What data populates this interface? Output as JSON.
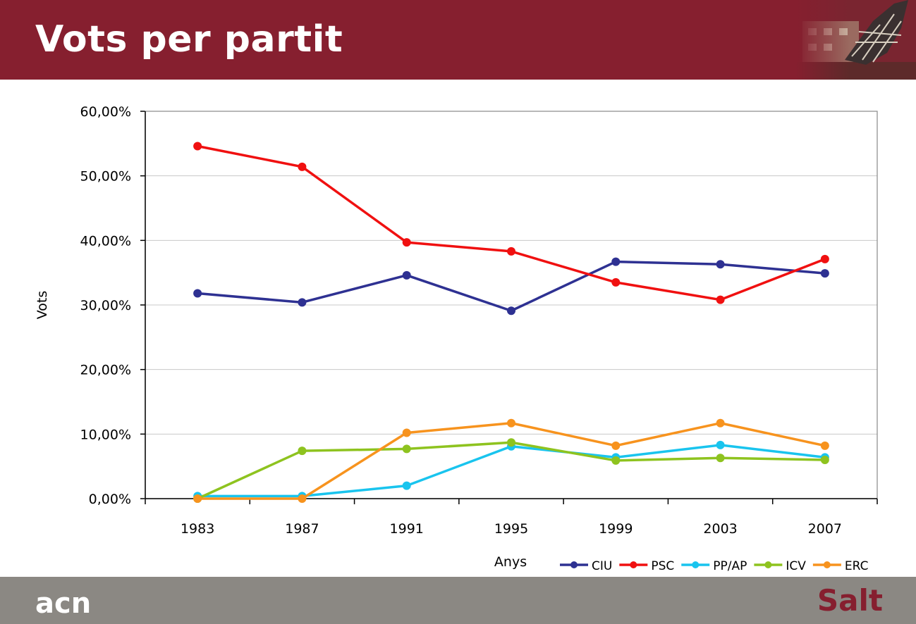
{
  "page": {
    "title": "Vots per partit",
    "place": "Salt",
    "brand": "acn"
  },
  "colors": {
    "header": "#861f2f",
    "footer": "#8b8883",
    "place_text": "#861f2f"
  },
  "chart_data": {
    "type": "line",
    "title": "",
    "xlabel": "Anys",
    "ylabel": "Vots",
    "categories": [
      "1983",
      "1987",
      "1991",
      "1995",
      "1999",
      "2003",
      "2007"
    ],
    "yticks": [
      "0,00%",
      "10,00%",
      "20,00%",
      "30,00%",
      "40,00%",
      "50,00%",
      "60,00%"
    ],
    "ylim": [
      0,
      60
    ],
    "grid": true,
    "legend": "bottom-right",
    "series": [
      {
        "name": "CIU",
        "color": "#2e3192",
        "values": [
          31.8,
          30.4,
          34.6,
          29.1,
          36.7,
          36.3,
          34.9
        ]
      },
      {
        "name": "PSC",
        "color": "#f01010",
        "values": [
          54.6,
          51.4,
          39.7,
          38.3,
          33.5,
          30.8,
          37.1
        ]
      },
      {
        "name": "PP/AP",
        "color": "#19c4ee",
        "values": [
          0.4,
          0.4,
          2.0,
          8.1,
          6.4,
          8.3,
          6.4
        ]
      },
      {
        "name": "ICV",
        "color": "#8ec31f",
        "values": [
          0.0,
          7.4,
          7.7,
          8.7,
          5.9,
          6.3,
          6.0
        ]
      },
      {
        "name": "ERC",
        "color": "#f7931e",
        "values": [
          0.0,
          0.0,
          10.2,
          11.7,
          8.2,
          11.7,
          8.2
        ]
      }
    ]
  }
}
